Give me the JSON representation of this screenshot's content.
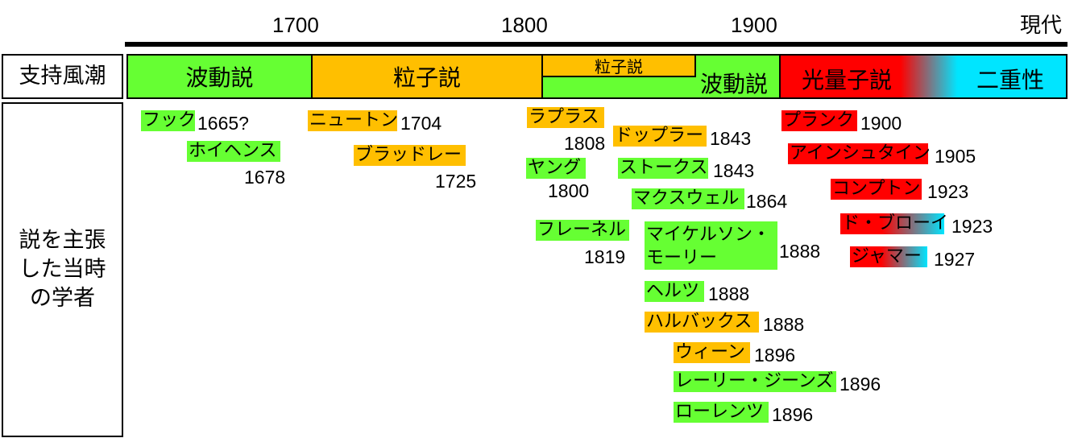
{
  "axis": {
    "ticks": [
      "1700",
      "1800",
      "1900",
      "現代"
    ]
  },
  "rows": {
    "support_label": "支持風潮",
    "scholars_label": "説を主張した当時の学者"
  },
  "bands": [
    {
      "label": "波動説"
    },
    {
      "label": "粒子説"
    },
    {
      "label": "粒子説"
    },
    {
      "label": "波動説"
    },
    {
      "label": "光量子説"
    },
    {
      "label": "二重性"
    }
  ],
  "scholars": [
    {
      "name": "フック",
      "year": "1665?",
      "theory": "wave"
    },
    {
      "name": "ホイヘンス",
      "year": "1678",
      "theory": "wave"
    },
    {
      "name": "ニュートン",
      "year": "1704",
      "theory": "particle"
    },
    {
      "name": "ブラッドレー",
      "year": "1725",
      "theory": "particle"
    },
    {
      "name": "ラプラス",
      "year": "1808",
      "theory": "particle"
    },
    {
      "name": "ヤング",
      "year": "1800",
      "theory": "wave"
    },
    {
      "name": "フレーネル",
      "year": "1819",
      "theory": "wave"
    },
    {
      "name": "ドップラー",
      "year": "1843",
      "theory": "particle"
    },
    {
      "name": "ストークス",
      "year": "1843",
      "theory": "wave"
    },
    {
      "name": "マクスウェル",
      "year": "1864",
      "theory": "wave"
    },
    {
      "name": "マイケルソン・モーリー",
      "year": "1888",
      "theory": "wave"
    },
    {
      "name": "ヘルツ",
      "year": "1888",
      "theory": "wave"
    },
    {
      "name": "ハルバックス",
      "year": "1888",
      "theory": "particle"
    },
    {
      "name": "ウィーン",
      "year": "1896",
      "theory": "particle"
    },
    {
      "name": "レーリー・ジーンズ",
      "year": "1896",
      "theory": "wave"
    },
    {
      "name": "ローレンツ",
      "year": "1896",
      "theory": "wave"
    },
    {
      "name": "プランク",
      "year": "1900",
      "theory": "quantum"
    },
    {
      "name": "アインシュタイン",
      "year": "1905",
      "theory": "quantum"
    },
    {
      "name": "コンプトン",
      "year": "1923",
      "theory": "quantum"
    },
    {
      "name": "ド・ブローイ",
      "year": "1923",
      "theory": "duality"
    },
    {
      "name": "ジャマー",
      "year": "1927",
      "theory": "duality"
    }
  ],
  "colors": {
    "wave": "#66ff33",
    "particle": "#ffbf00",
    "quantum": "#ff0000",
    "duality": "#00e5ff"
  }
}
